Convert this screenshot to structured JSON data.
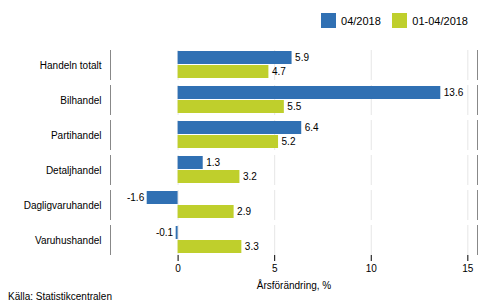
{
  "chart_data": {
    "type": "bar",
    "orientation": "horizontal",
    "categories": [
      "Handeln totalt",
      "Bilhandel",
      "Partihandel",
      "Detaljhandel",
      "Dagligvaruhandel",
      "Varuhushandel"
    ],
    "series": [
      {
        "name": "04/2018",
        "color": "#3070B3",
        "values": [
          5.9,
          13.6,
          6.4,
          1.3,
          -1.6,
          -0.1
        ]
      },
      {
        "name": "01-04/2018",
        "color": "#BFCF2C",
        "values": [
          4.7,
          5.5,
          5.2,
          3.2,
          2.9,
          3.3
        ]
      }
    ],
    "xlabel": "Årsförändring, %",
    "xlim": [
      -3.5,
      15.5
    ],
    "xticks": [
      0,
      5,
      10,
      15
    ],
    "grid": true,
    "legend": "upper right",
    "data_labels": true,
    "annotations": [
      "Källa: Statistikcentralen"
    ]
  }
}
